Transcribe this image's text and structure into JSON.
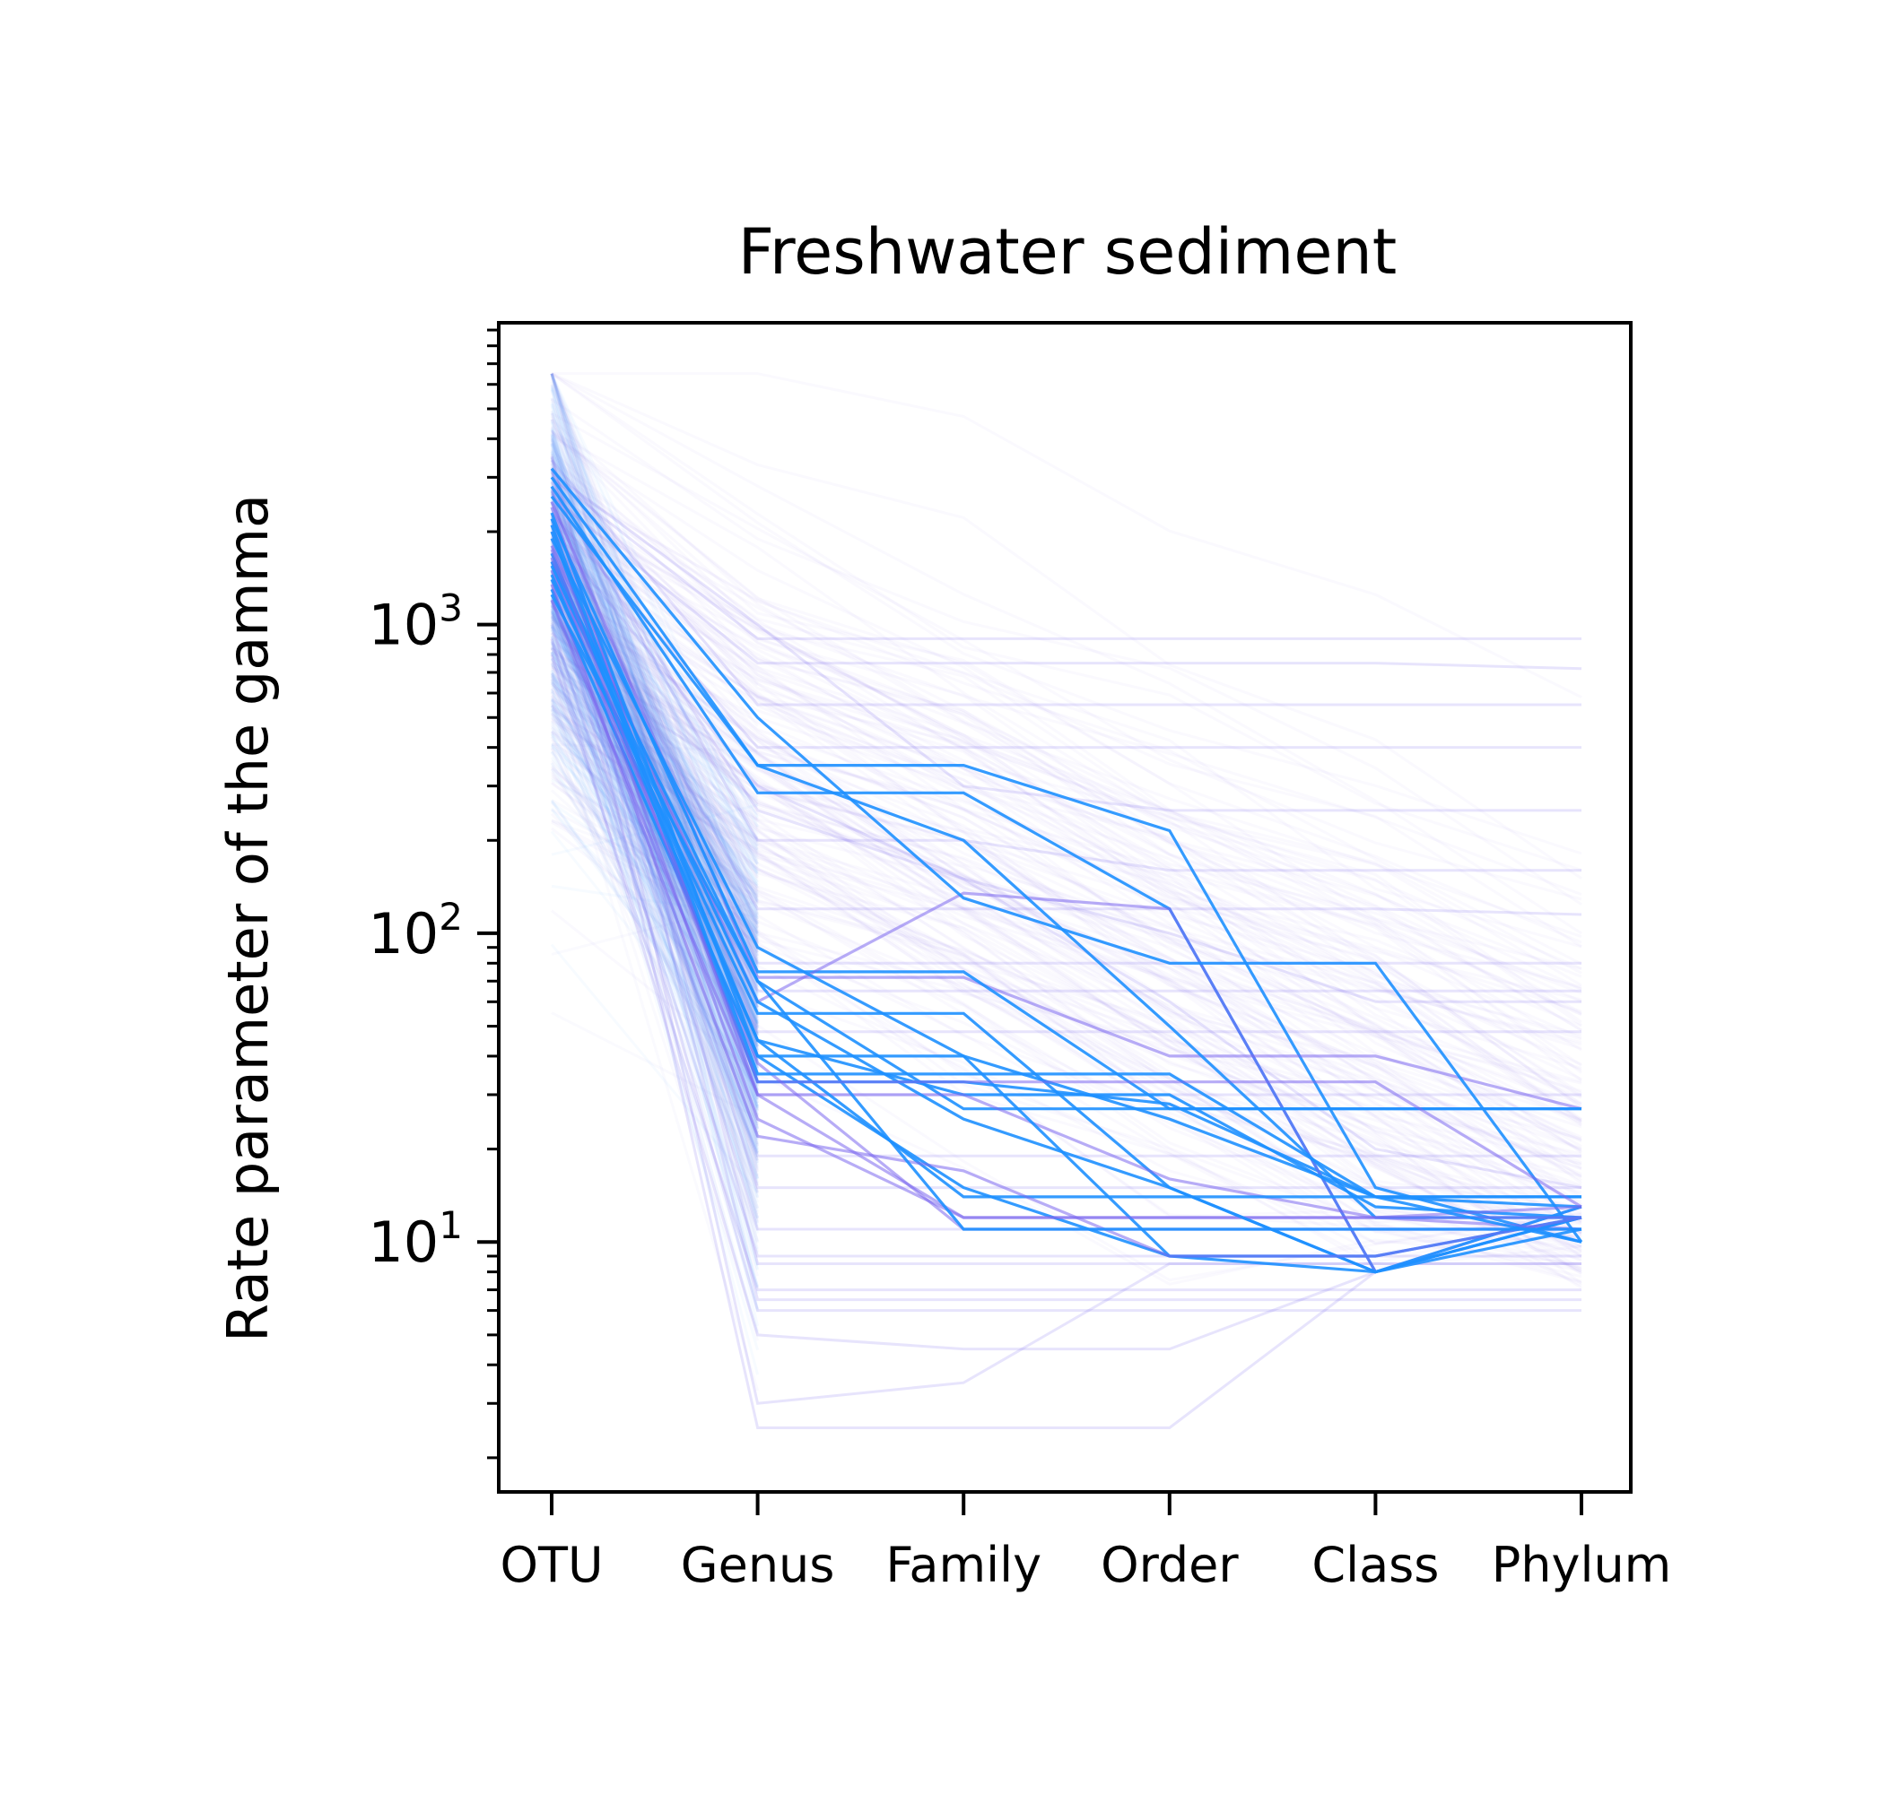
{
  "chart_data": {
    "type": "line",
    "title": "Freshwater sediment",
    "xlabel": "",
    "ylabel": "Rate parameter of the gamma",
    "categories": [
      "OTU",
      "Genus",
      "Family",
      "Order",
      "Class",
      "Phylum"
    ],
    "yscale": "log",
    "ylim": [
      1.55,
      9500
    ],
    "yticks": [
      {
        "value": 10,
        "base": "10",
        "exp": "1"
      },
      {
        "value": 100,
        "base": "10",
        "exp": "2"
      },
      {
        "value": 1000,
        "base": "10",
        "exp": "3"
      }
    ],
    "grid": false,
    "legend": "none",
    "colors": {
      "primary": "#1e90ff",
      "secondary": "#7b68ee",
      "background": "#ffffff",
      "axis": "#000000"
    },
    "series": [
      {
        "values": [
          3000,
          350,
          350,
          215,
          15,
          10
        ]
      },
      {
        "values": [
          2800,
          285,
          285,
          120,
          8,
          12
        ]
      },
      {
        "values": [
          2500,
          72,
          72,
          40,
          40,
          27
        ]
      },
      {
        "values": [
          2200,
          75,
          75,
          27,
          27,
          27
        ]
      },
      {
        "values": [
          2000,
          33,
          33,
          28,
          14,
          14
        ]
      },
      {
        "values": [
          1800,
          60,
          135,
          120,
          8,
          13
        ]
      },
      {
        "values": [
          1700,
          45,
          30,
          30,
          13,
          12
        ]
      },
      {
        "values": [
          1600,
          70,
          27,
          27,
          27,
          27
        ]
      },
      {
        "values": [
          1500,
          38,
          11,
          11,
          11,
          11
        ]
      },
      {
        "values": [
          1400,
          55,
          55,
          15,
          8,
          13
        ]
      },
      {
        "values": [
          1300,
          40,
          15,
          9,
          9,
          12
        ]
      },
      {
        "values": [
          1200,
          30,
          30,
          16,
          12,
          11
        ]
      },
      {
        "values": [
          3200,
          500,
          130,
          80,
          80,
          10
        ]
      },
      {
        "values": [
          2600,
          350,
          200,
          50,
          12,
          12
        ]
      },
      {
        "values": [
          2400,
          30,
          12,
          12,
          12,
          12
        ]
      },
      {
        "values": [
          2100,
          35,
          35,
          35,
          14,
          13
        ]
      },
      {
        "values": [
          1900,
          90,
          40,
          9,
          8,
          12
        ]
      },
      {
        "values": [
          1650,
          25,
          12,
          12,
          12,
          13
        ]
      },
      {
        "values": [
          1550,
          60,
          25,
          15,
          8,
          11
        ]
      },
      {
        "values": [
          1450,
          45,
          14,
          14,
          14,
          14
        ]
      },
      {
        "values": [
          1350,
          22,
          17,
          9,
          9,
          12
        ]
      },
      {
        "values": [
          1250,
          70,
          11,
          11,
          11,
          11
        ]
      },
      {
        "values": [
          2300,
          40,
          40,
          25,
          14,
          10
        ]
      },
      {
        "values": [
          1750,
          33,
          33,
          33,
          33,
          13
        ]
      }
    ],
    "faint_series": [
      {
        "values": [
          3500,
          8.5,
          8.5,
          8.5,
          8.5,
          8.5
        ]
      },
      {
        "values": [
          3200,
          6.5,
          6.5,
          6.5,
          6.5,
          6.5
        ]
      },
      {
        "values": [
          2800,
          3.0,
          3.5,
          8.5,
          8.5,
          8.5
        ]
      },
      {
        "values": [
          2500,
          80,
          80,
          80,
          80,
          80
        ]
      },
      {
        "values": [
          2200,
          2.5,
          2.5,
          2.5,
          8,
          12
        ]
      },
      {
        "values": [
          2000,
          30,
          30,
          30,
          30,
          30
        ]
      },
      {
        "values": [
          3400,
          550,
          550,
          550,
          550,
          550
        ]
      },
      {
        "values": [
          3000,
          900,
          900,
          900,
          900,
          900
        ]
      },
      {
        "values": [
          2600,
          750,
          750,
          750,
          750,
          720
        ]
      },
      {
        "values": [
          2300,
          400,
          400,
          400,
          400,
          400
        ]
      },
      {
        "values": [
          1800,
          120,
          120,
          120,
          120,
          115
        ]
      },
      {
        "values": [
          1500,
          65,
          65,
          65,
          65,
          65
        ]
      },
      {
        "values": [
          1200,
          19,
          19,
          19,
          19,
          19
        ]
      },
      {
        "values": [
          1000,
          9,
          9,
          9,
          9,
          9
        ]
      },
      {
        "values": [
          900,
          5.0,
          4.5,
          4.5,
          8,
          12
        ]
      },
      {
        "values": [
          800,
          7.0,
          7.0,
          7.0,
          7.0,
          7.0
        ]
      },
      {
        "values": [
          2900,
          200,
          200,
          160,
          160,
          160
        ]
      },
      {
        "values": [
          2700,
          250,
          150,
          100,
          60,
          60
        ]
      },
      {
        "values": [
          2100,
          48,
          48,
          48,
          48,
          48
        ]
      },
      {
        "values": [
          1900,
          15,
          15,
          15,
          15,
          15
        ]
      },
      {
        "values": [
          1600,
          11,
          11,
          11,
          11,
          11
        ]
      },
      {
        "values": [
          1400,
          6.0,
          6.0,
          6.0,
          6.0,
          6.0
        ]
      },
      {
        "values": [
          3100,
          1000,
          300,
          250,
          250,
          250
        ]
      },
      {
        "values": [
          2000,
          300,
          150,
          60,
          20,
          15
        ]
      }
    ]
  }
}
